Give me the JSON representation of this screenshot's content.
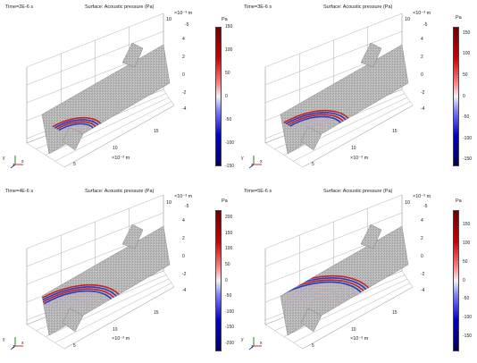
{
  "panels": [
    {
      "time_label": "Time=2E-6 s",
      "title": "Surface: Acoustic pressure (Pa)",
      "colorbar": {
        "unit": "Pa",
        "ticks": [
          "150",
          "100",
          "50",
          "0",
          "-50",
          "-100",
          "-150"
        ],
        "max": 150,
        "min": -150
      },
      "z_exponent": "×10⁻³ m",
      "z_top_value": "10",
      "y_exponent": "×10⁻³ m",
      "y_ticks": [
        "-5",
        "4",
        "2",
        "0",
        "-2",
        "-4"
      ],
      "x_ticks": [
        "15",
        "10",
        "5"
      ],
      "x_exponent": "×10⁻³ m",
      "triad": {
        "x": "x",
        "y": "y",
        "z": "z"
      },
      "wave_radius": 0.25
    },
    {
      "time_label": "Time=3E-6 s",
      "title": "Surface: Acoustic pressure (Pa)",
      "colorbar": {
        "unit": "Pa",
        "ticks": [
          "150",
          "100",
          "50",
          "0",
          "-50",
          "-100",
          "-150"
        ],
        "max": 165,
        "min": -165
      },
      "z_exponent": "×10⁻³ m",
      "z_top_value": "10",
      "y_exponent": "×10⁻³ m",
      "y_ticks": [
        "-5",
        "4",
        "2",
        "0",
        "-2",
        "-4"
      ],
      "x_ticks": [
        "15",
        "10",
        "5"
      ],
      "x_exponent": "×10⁻³ m",
      "triad": {
        "x": "x",
        "y": "y",
        "z": "z"
      },
      "wave_radius": 0.45
    },
    {
      "time_label": "Time=4E-6 s",
      "title": "Surface: Acoustic pressure (Pa)",
      "colorbar": {
        "unit": "Pa",
        "ticks": [
          "200",
          "150",
          "100",
          "50",
          "0",
          "-50",
          "-100",
          "-150",
          "-200"
        ],
        "max": 225,
        "min": -225
      },
      "z_exponent": "×10⁻³ m",
      "z_top_value": "10",
      "y_exponent": "×10⁻³ m",
      "y_ticks": [
        "-5",
        "4",
        "2",
        "0",
        "-2",
        "-4"
      ],
      "x_ticks": [
        "15",
        "10",
        "5"
      ],
      "x_exponent": "×10⁻³ m",
      "triad": {
        "x": "x",
        "y": "y",
        "z": "z"
      },
      "wave_radius": 0.65
    },
    {
      "time_label": "Time=5E-6 s",
      "title": "Surface: Acoustic pressure (Pa)",
      "colorbar": {
        "unit": "Pa",
        "ticks": [
          "150",
          "100",
          "50",
          "0",
          "-50",
          "-100",
          "-150"
        ],
        "max": 190,
        "min": -190
      },
      "z_exponent": "×10⁻³ m",
      "z_top_value": "10",
      "y_exponent": "×10⁻³ m",
      "y_ticks": [
        "-5",
        "4",
        "2",
        "0",
        "-2",
        "-4"
      ],
      "x_ticks": [
        "15",
        "10",
        "5"
      ],
      "x_exponent": "×10⁻³ m",
      "triad": {
        "x": "x",
        "y": "y",
        "z": "z"
      },
      "wave_radius": 0.9
    }
  ],
  "colors": {
    "background": "#ffffff",
    "surface_neutral": "#b9b9b9",
    "positive": "#8b0000",
    "negative": "#00008b",
    "grid": "#9a9a9a"
  }
}
